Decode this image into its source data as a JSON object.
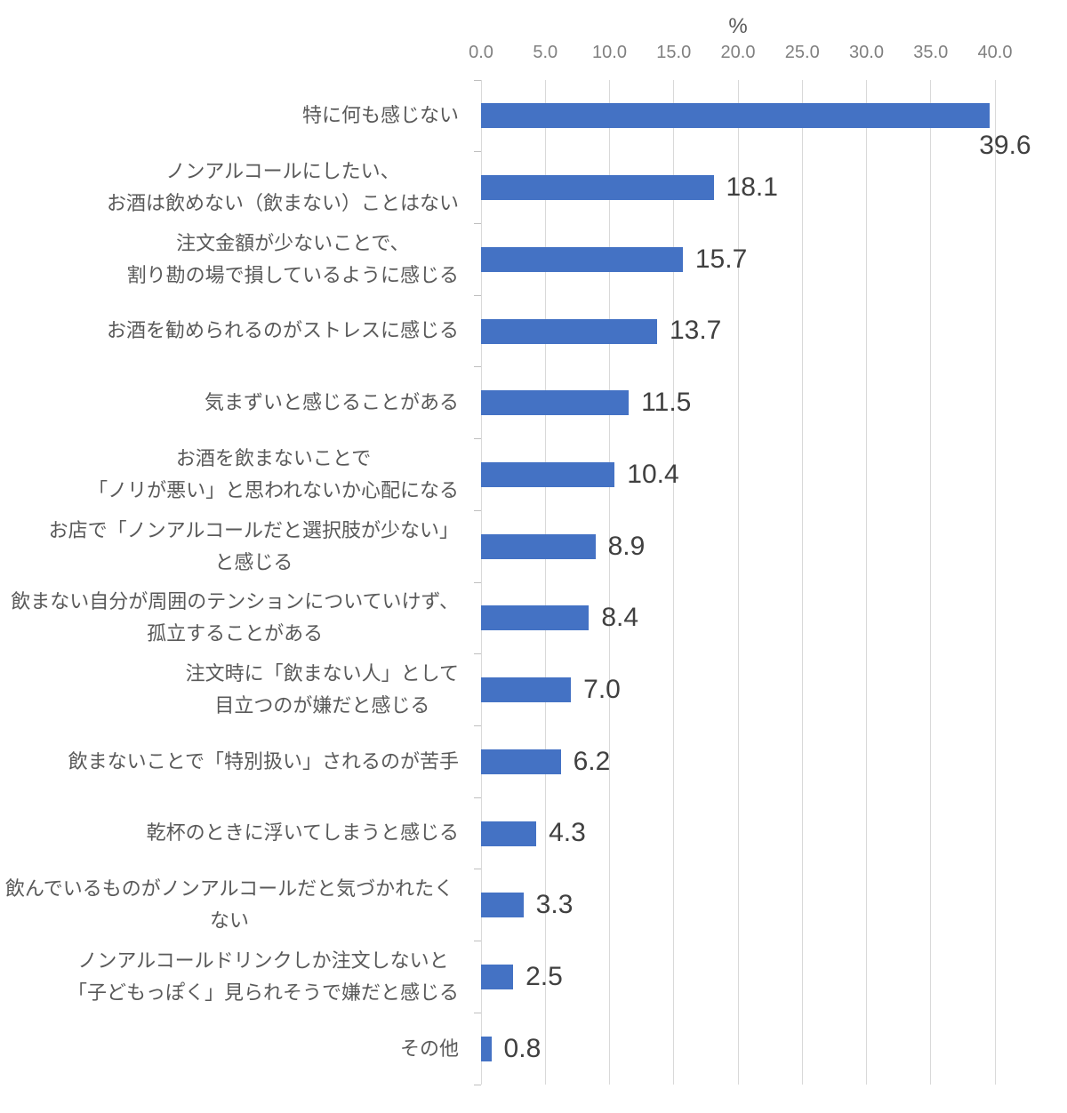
{
  "chart_data": {
    "type": "bar",
    "orientation": "horizontal",
    "title": "",
    "unit_label": "%",
    "xlabel": "%",
    "ylabel": "",
    "x_ticks": [
      "0.0",
      "5.0",
      "10.0",
      "15.0",
      "20.0",
      "25.0",
      "30.0",
      "35.0",
      "40.0"
    ],
    "xlim": [
      0.0,
      40.0
    ],
    "grid": true,
    "legend": "none",
    "categories": [
      "特に何も感じない",
      "ノンアルコールにしたい、\nお酒は飲めない（飲まない）ことはない",
      "注文金額が少ないことで、\n割り勘の場で損しているように感じる",
      "お酒を勧められるのがストレスに感じる",
      "気まずいと感じることがある",
      "お酒を飲まないことで\n「ノリが悪い」と思われないか心配になる",
      "お店で「ノンアルコールだと選択肢が少ない」\nと感じる",
      "飲まない自分が周囲のテンションについていけず、\n孤立することがある",
      "注文時に「飲まない人」として\n目立つのが嫌だと感じる",
      "飲まないことで「特別扱い」されるのが苦手",
      "乾杯のときに浮いてしまうと感じる",
      "飲んでいるものがノンアルコールだと気づかれたくない",
      "ノンアルコールドリンクしか注文しないと\n「子どもっぽく」見られそうで嫌だと感じる",
      "その他"
    ],
    "values": [
      39.6,
      18.1,
      15.7,
      13.7,
      11.5,
      10.4,
      8.9,
      8.4,
      7.0,
      6.2,
      4.3,
      3.3,
      2.5,
      0.8
    ],
    "value_labels": [
      "39.6",
      "18.1",
      "15.7",
      "13.7",
      "11.5",
      "10.4",
      "8.9",
      "8.4",
      "7.0",
      "6.2",
      "4.3",
      "3.3",
      "2.5",
      "0.8"
    ],
    "colors": {
      "bar": "#4472C4",
      "gridline": "#D9D9D9",
      "tick_text": "#808080",
      "category_text": "#595959",
      "value_text": "#404040",
      "axis_tick": "#BFBFBF"
    }
  }
}
